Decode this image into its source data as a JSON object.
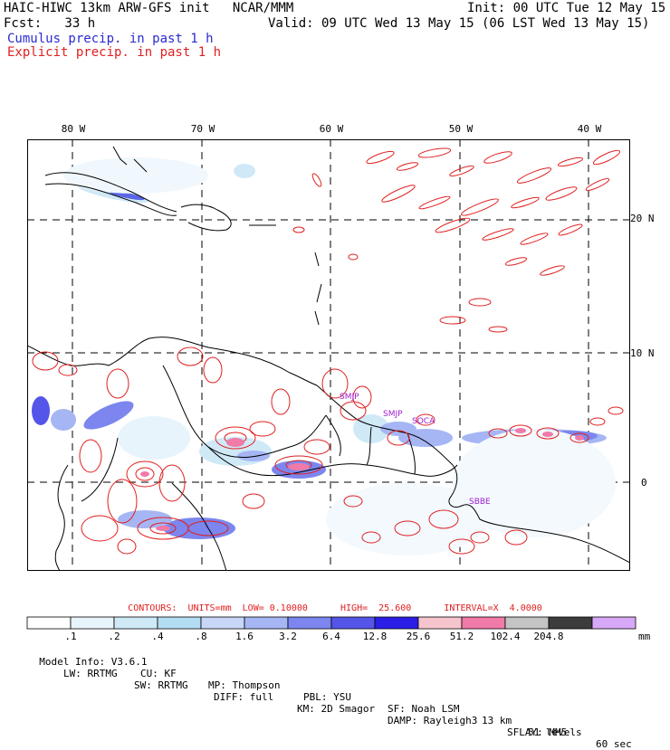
{
  "header": {
    "model_line": "HAIC-HIWC 13km ARW-GFS init   NCAR/MMM",
    "init_line": "Init: 00 UTC Tue 12 May 15",
    "fcst_line": "Fcst:   33 h",
    "valid_line": "Valid: 09 UTC Wed 13 May 15 (06 LST Wed 13 May 15)",
    "legend_cumulus": "Cumulus precip. in past 1 h",
    "legend_explicit": "Explicit precip. in past 1 h"
  },
  "map": {
    "lon_labels": [
      "80 W",
      "70 W",
      "60 W",
      "50 W",
      "40 W"
    ],
    "lat_labels": [
      "20 N",
      "10 N",
      "0"
    ],
    "stations": [
      "SMJP",
      "SMJP",
      "SOCA",
      "SBBE"
    ]
  },
  "contours_line": "CONTOURS:  UNITS=mm  LOW= 0.10000      HIGH=  25.600      INTERVAL=X  4.0000",
  "colorbar": {
    "labels": [
      ".1",
      ".2",
      ".4",
      ".8",
      "1.6",
      "3.2",
      "6.4",
      "12.8",
      "25.6",
      "51.2",
      "102.4",
      "204.8"
    ],
    "unit": "mm",
    "colors": [
      "#ffffff",
      "#e8f4fb",
      "#cfe9f7",
      "#b3ddf3",
      "#c8d6f8",
      "#a6b6f4",
      "#7c86ee",
      "#5555ea",
      "#2a1ee6",
      "#f6c4cc",
      "#f07aa8",
      "#c4c4c4",
      "#3c3c3c",
      "#d8a8f8"
    ]
  },
  "model_info": {
    "line1": [
      "Model Info: V3.6.1",
      "CU: KF",
      "MP: Thompson",
      "PBL: YSU",
      "SF: Noah LSM",
      "13 km",
      "51 levels",
      "60 sec"
    ],
    "line2": [
      "LW: RRTMG",
      "SW: RRTMG",
      "DIFF: full",
      "KM: 2D Smagor",
      "DAMP: Rayleigh3",
      "SFLAY: MM5"
    ]
  }
}
